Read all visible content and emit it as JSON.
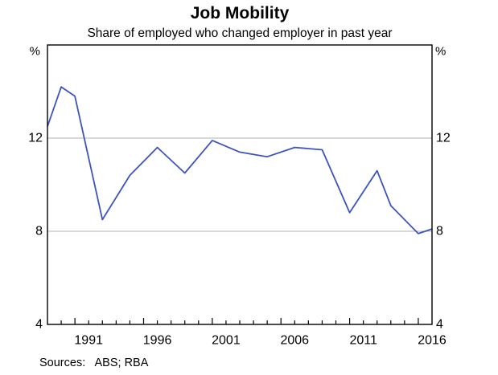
{
  "header": {
    "title": "Job Mobility",
    "subtitle": "Share of employed who changed employer in past year"
  },
  "footer": {
    "sources": "Sources:   ABS; RBA"
  },
  "colors": {
    "line": "#3c53c0",
    "gridline": "#b3b3b3",
    "frame": "#000000",
    "text": "#000000",
    "background": "#ffffff"
  },
  "chart_data": {
    "type": "line",
    "title": "Job Mobility",
    "subtitle": "Share of employed who changed employer in past year",
    "unit_label": "%",
    "xlabel": "",
    "ylabel": "%",
    "ylim": [
      4,
      16
    ],
    "yticks": [
      4,
      8,
      12
    ],
    "gridlines": [
      8,
      12
    ],
    "xlim": [
      1988,
      2016
    ],
    "xtick_labels": [
      "1991",
      "1996",
      "2001",
      "2006",
      "2011",
      "2016"
    ],
    "minor_tick_every": 1,
    "major_tick_every": 5,
    "legend_position": "none",
    "grid": "horizontal-only",
    "sources": "Sources:   ABS; RBA",
    "series": [
      {
        "name": "Share of employed who changed employer in past year",
        "color": "#3c53c0",
        "points": [
          [
            1988,
            12.5
          ],
          [
            1989,
            14.2
          ],
          [
            1990,
            13.8
          ],
          [
            1992,
            8.5
          ],
          [
            1994,
            10.4
          ],
          [
            1996,
            11.6
          ],
          [
            1998,
            10.5
          ],
          [
            2000,
            11.9
          ],
          [
            2002,
            11.4
          ],
          [
            2004,
            11.2
          ],
          [
            2006,
            11.6
          ],
          [
            2008,
            11.5
          ],
          [
            2010,
            8.8
          ],
          [
            2012,
            10.6
          ],
          [
            2013,
            9.1
          ],
          [
            2015,
            7.9
          ],
          [
            2016,
            8.1
          ]
        ]
      }
    ]
  }
}
